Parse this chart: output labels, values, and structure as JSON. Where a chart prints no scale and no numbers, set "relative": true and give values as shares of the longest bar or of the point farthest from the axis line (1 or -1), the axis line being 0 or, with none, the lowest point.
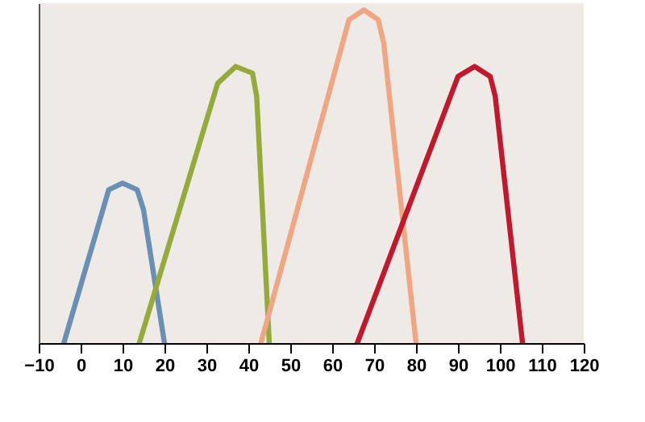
{
  "chart_data": {
    "type": "line",
    "relative": true,
    "xlim": [
      -10,
      120
    ],
    "xticks": [
      -10,
      0,
      10,
      20,
      30,
      40,
      50,
      60,
      70,
      80,
      90,
      100,
      110,
      120
    ],
    "grid": false,
    "marker": "none",
    "line_style": "solid",
    "series": [
      {
        "color": "#6a8fb5",
        "x": [
          -4,
          6.7,
          10,
          13.5,
          15,
          20
        ],
        "values": [
          0,
          0.46,
          0.48,
          0.46,
          0.4,
          0
        ]
      },
      {
        "color": "#96aa3c",
        "x": [
          14,
          32.7,
          37,
          41,
          42,
          45
        ],
        "values": [
          0,
          0.78,
          0.83,
          0.81,
          0.74,
          0
        ]
      },
      {
        "color": "#f0a583",
        "x": [
          43,
          64,
          67.6,
          71,
          72.3,
          80
        ],
        "values": [
          0,
          0.97,
          1,
          0.97,
          0.9,
          0
        ]
      },
      {
        "color": "#c0182c",
        "x": [
          66,
          90,
          94,
          97.7,
          98.9,
          105.4
        ],
        "values": [
          0,
          0.8,
          0.83,
          0.8,
          0.74,
          0
        ]
      }
    ]
  }
}
